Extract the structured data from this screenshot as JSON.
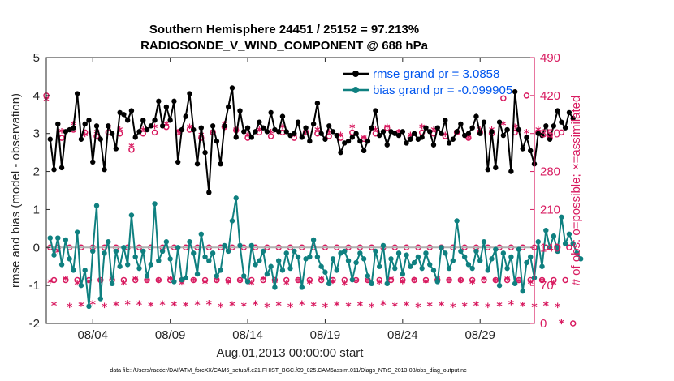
{
  "chart_data": {
    "type": "line",
    "title_line1": "Southern Hemisphere 24451 / 25152 = 97.213%",
    "title_line2": "RADIOSONDE_V_WIND_COMPONENT @ 688 hPa",
    "xlabel": "Aug.01,2013 00:00:00 start",
    "ylabel_left": "rmse and bias (model - observation)",
    "ylabel_right": "# of obs: o=possible; ×=assimilated",
    "footer": "data file: /Users/raeder/DAI/ATM_forcXX/CAM6_setup/f.e21.FHIST_BGC.f09_025.CAM6assim.011/Diags_NTrS_2013-08/obs_diag_output.nc",
    "xlim": [
      1,
      32.5
    ],
    "ylim_left": [
      -2,
      5
    ],
    "ylim_right": [
      0,
      490
    ],
    "left_ticks": [
      "-2",
      "-1",
      "0",
      "1",
      "2",
      "3",
      "4",
      "5"
    ],
    "right_ticks": [
      "0",
      "70",
      "140",
      "210",
      "280",
      "350",
      "420",
      "490"
    ],
    "x_ticks": [
      {
        "day": 4,
        "label": "08/04"
      },
      {
        "day": 9,
        "label": "08/09"
      },
      {
        "day": 14,
        "label": "08/14"
      },
      {
        "day": 19,
        "label": "08/19"
      },
      {
        "day": 24,
        "label": "08/24"
      },
      {
        "day": 29,
        "label": "08/29"
      }
    ],
    "x_start": 1.25,
    "x_step": 0.25,
    "series": [
      {
        "name": "rmse grand pr = 3.0858",
        "color": "#000000",
        "values": [
          2.85,
          2.05,
          3.25,
          2.1,
          3.05,
          3.1,
          3.15,
          4.05,
          2.85,
          3.25,
          3.35,
          2.25,
          3.2,
          2.85,
          2.05,
          3.2,
          3.0,
          2.6,
          3.55,
          3.5,
          3.35,
          3.6,
          2.9,
          3.05,
          3.35,
          3.1,
          3.2,
          3.35,
          3.85,
          3.2,
          3.7,
          3.35,
          3.85,
          2.25,
          3.1,
          3.45,
          4.05,
          3.1,
          2.2,
          3.15,
          2.5,
          1.45,
          3.2,
          2.8,
          2.2,
          3.2,
          3.7,
          4.2,
          2.9,
          3.6,
          3.05,
          3.15,
          2.9,
          3.05,
          3.3,
          3.15,
          3.05,
          3.55,
          3.1,
          3.05,
          3.45,
          3.05,
          2.95,
          3.0,
          3.3,
          2.9,
          3.15,
          2.8,
          3.25,
          3.8,
          3.0,
          2.85,
          3.2,
          3.05,
          2.95,
          2.5,
          2.75,
          2.8,
          2.9,
          3.0,
          2.8,
          2.55,
          2.8,
          3.15,
          3.6,
          2.95,
          3.05,
          2.7,
          3.05,
          3.0,
          2.95,
          3.05,
          2.75,
          2.85,
          3.0,
          2.85,
          2.9,
          3.15,
          3.05,
          2.7,
          3.15,
          3.0,
          3.35,
          2.75,
          2.85,
          3.05,
          3.25,
          2.95,
          3.0,
          3.15,
          3.45,
          3.0,
          3.3,
          2.05,
          3.05,
          2.1,
          3.3,
          2.95,
          3.1,
          2.0,
          4.1,
          3.1,
          2.6,
          2.9,
          2.55,
          2.2,
          3.0,
          2.95,
          3.2,
          2.85,
          3.2,
          3.6,
          3.3,
          3.15,
          3.55,
          3.4
        ]
      },
      {
        "name": "bias grand pr = -0.099905",
        "color": "#0f8080",
        "values": [
          0.25,
          -0.2,
          0.25,
          -0.45,
          0.2,
          -0.3,
          -0.6,
          0.4,
          -1.0,
          -0.6,
          -1.55,
          -0.1,
          1.1,
          -1.35,
          -0.15,
          0.15,
          -0.95,
          -0.1,
          -0.5,
          0.0,
          -0.45,
          0.85,
          -0.25,
          -0.55,
          -0.1,
          -0.75,
          -0.45,
          1.15,
          -0.35,
          -0.1,
          0.15,
          -0.3,
          -0.9,
          0.0,
          -0.85,
          -0.8,
          0.15,
          -0.15,
          -0.7,
          0.35,
          -0.25,
          -0.35,
          -0.15,
          -0.75,
          -0.6,
          0.05,
          -0.1,
          0.7,
          1.3,
          0.05,
          -0.75,
          -0.9,
          0.05,
          -0.45,
          -0.35,
          -0.1,
          -0.7,
          -0.5,
          -1.05,
          -0.35,
          -0.6,
          -0.15,
          -0.55,
          -0.1,
          -0.25,
          -1.05,
          -0.3,
          -0.25,
          0.2,
          -0.25,
          -0.5,
          -0.65,
          -0.95,
          -0.3,
          -0.6,
          -0.15,
          -0.1,
          -0.35,
          -0.85,
          -0.4,
          -0.15,
          -0.3,
          -0.75,
          -0.95,
          -0.1,
          -0.5,
          0.05,
          -0.95,
          -0.3,
          -0.55,
          -0.15,
          -0.7,
          -0.2,
          -0.5,
          -0.4,
          -0.25,
          -0.55,
          -0.15,
          -0.45,
          -0.6,
          -0.9,
          0.0,
          -0.15,
          -0.55,
          -0.35,
          0.7,
          -0.1,
          -0.25,
          -0.45,
          -0.55,
          -0.1,
          -0.35,
          0.15,
          -0.6,
          -0.3,
          -0.05,
          -1.0,
          -0.15,
          -0.55,
          -0.25,
          -0.95,
          -0.05,
          -1.15,
          -0.4,
          -0.25,
          -0.8,
          0.15,
          -0.5,
          0.45,
          0.0,
          0.3,
          -0.1,
          0.8,
          0.1,
          0.35,
          0.1,
          -0.15,
          -0.3
        ]
      }
    ],
    "possible_counts": [
      420,
      140,
      80,
      140,
      342,
      80,
      140,
      357,
      80,
      140,
      352,
      80,
      140,
      345,
      80,
      140,
      352,
      80,
      140,
      350,
      80,
      140,
      320,
      80,
      140,
      350,
      80,
      140,
      352,
      80,
      140,
      362,
      80,
      140,
      352,
      80,
      140,
      357,
      80,
      140,
      342,
      80,
      140,
      352,
      80,
      140,
      362,
      80,
      140,
      356,
      80,
      140,
      342,
      80,
      140,
      352,
      80,
      140,
      345,
      80,
      140,
      352,
      80,
      140,
      342,
      80,
      140,
      352,
      80,
      140,
      350,
      80,
      140,
      345,
      80,
      140,
      342,
      80,
      140,
      352,
      80,
      140,
      340,
      80,
      140,
      350,
      80,
      140,
      360,
      80,
      140,
      352,
      80,
      140,
      342,
      80,
      140,
      352,
      80,
      140,
      350,
      80,
      140,
      345,
      80,
      140,
      352,
      80,
      140,
      342,
      80,
      140,
      352,
      80,
      140,
      350,
      80,
      140,
      415,
      80,
      140,
      352,
      80,
      140,
      420,
      80,
      140,
      352,
      80,
      140,
      342,
      80,
      140,
      352,
      80,
      140,
      0
    ],
    "assimilated_counts": [
      410,
      75,
      33,
      130,
      352,
      80,
      30,
      365,
      72,
      32,
      345,
      75,
      35,
      350,
      77,
      30,
      360,
      80,
      33,
      355,
      72,
      35,
      325,
      80,
      34,
      355,
      77,
      32,
      360,
      76,
      34,
      365,
      80,
      33,
      350,
      72,
      32,
      360,
      77,
      34,
      345,
      73,
      35,
      350,
      78,
      30,
      365,
      74,
      33,
      355,
      76,
      31,
      345,
      72,
      34,
      355,
      80,
      30,
      350,
      75,
      33,
      360,
      72,
      30,
      345,
      77,
      34,
      350,
      73,
      32,
      355,
      80,
      30,
      350,
      75,
      33,
      345,
      71,
      31,
      360,
      76,
      33,
      340,
      77,
      30,
      355,
      73,
      34,
      360,
      80,
      31,
      350,
      74,
      33,
      345,
      78,
      30,
      360,
      75,
      32,
      355,
      80,
      33,
      345,
      77,
      30,
      350,
      76,
      31,
      340,
      73,
      33,
      355,
      80,
      30,
      355,
      77,
      32,
      365,
      80,
      35,
      360,
      76,
      32,
      350,
      73,
      30,
      355,
      77,
      33,
      345,
      72,
      30,
      0
    ],
    "count_start_day": 1.0,
    "count_step": 0.25,
    "zero_line": 0
  }
}
